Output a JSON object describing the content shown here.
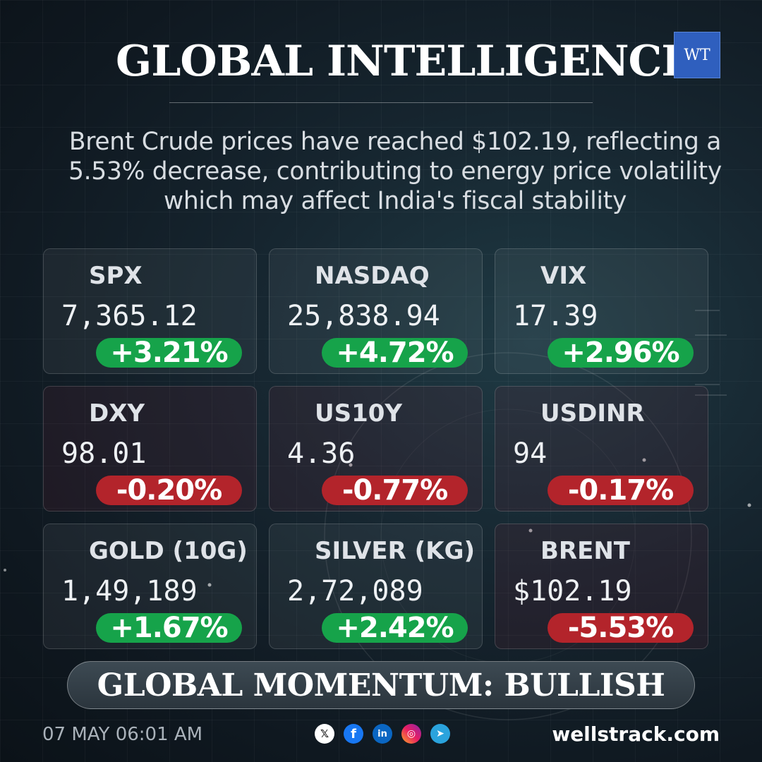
{
  "header": {
    "title": "GLOBAL INTELLIGENCE",
    "logo_text": "WT"
  },
  "headline": "Brent Crude prices have reached $102.19, reflecting a 5.53% decrease, contributing to energy price volatility which may affect India's fiscal stability",
  "cards": [
    {
      "label": "SPX",
      "value": "7,365.12",
      "change": "+3.21%",
      "direction": "up"
    },
    {
      "label": "NASDAQ",
      "value": "25,838.94",
      "change": "+4.72%",
      "direction": "up"
    },
    {
      "label": "VIX",
      "value": "17.39",
      "change": "+2.96%",
      "direction": "up"
    },
    {
      "label": "DXY",
      "value": "98.01",
      "change": "-0.20%",
      "direction": "down"
    },
    {
      "label": "US10Y",
      "value": "4.36",
      "change": "-0.77%",
      "direction": "down"
    },
    {
      "label": "USDINR",
      "value": "94",
      "change": "-0.17%",
      "direction": "down"
    },
    {
      "label": "GOLD (10G)",
      "value": "1,49,189",
      "change": "+1.67%",
      "direction": "up"
    },
    {
      "label": "SILVER (KG)",
      "value": "2,72,089",
      "change": "+2.42%",
      "direction": "up"
    },
    {
      "label": "BRENT",
      "value": "$102.19",
      "change": "-5.53%",
      "direction": "down"
    }
  ],
  "momentum": "GLOBAL MOMENTUM: BULLISH",
  "footer": {
    "timestamp": "07 MAY 06:01 AM",
    "website": "wellstrack.com",
    "social_icons": [
      "x-icon",
      "facebook-icon",
      "linkedin-icon",
      "instagram-icon",
      "telegram-icon"
    ]
  },
  "colors": {
    "positive": "#16a34a",
    "negative": "#b3242b",
    "logo": "#2f5fbe"
  }
}
